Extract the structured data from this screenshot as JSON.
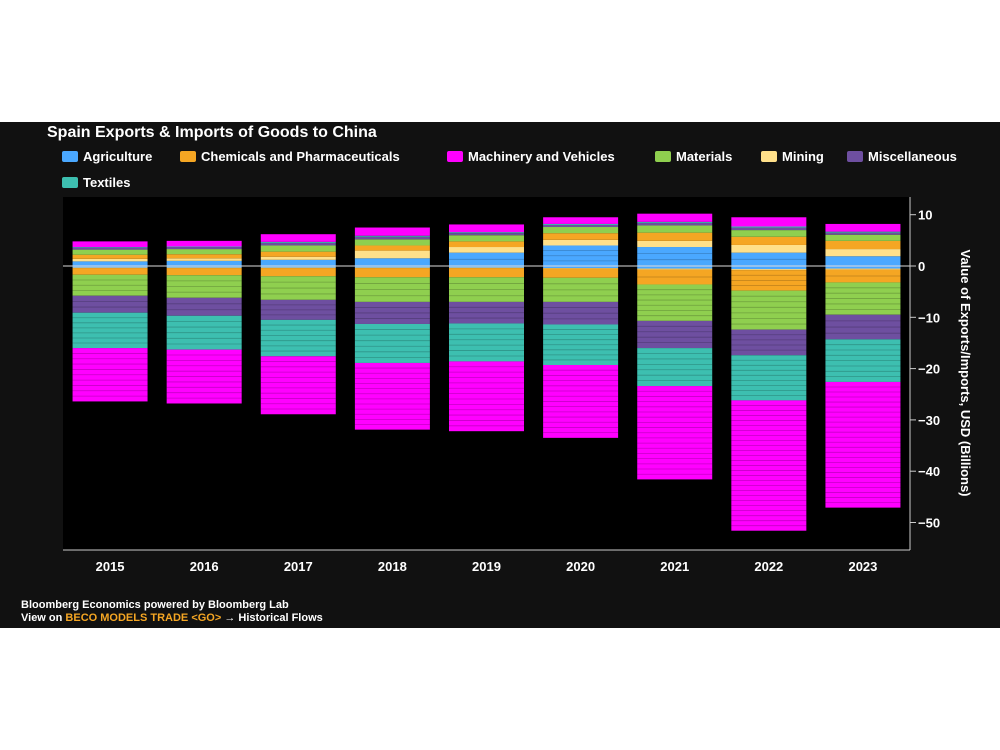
{
  "chart_data": {
    "type": "bar",
    "stacked": true,
    "title": "Spain Exports & Imports of Goods to China",
    "ylabel": "Value of Exports/Imports, USD (Billions)",
    "ylim": [
      -55,
      13
    ],
    "yticks": [
      "10",
      "0",
      "−10",
      "−20",
      "−30",
      "−40",
      "−50"
    ],
    "categories": [
      "2015",
      "2016",
      "2017",
      "2018",
      "2019",
      "2020",
      "2021",
      "2022",
      "2023"
    ],
    "series": [
      {
        "name": "Agriculture",
        "color": "#4aa8ff",
        "exports": [
          0.9,
          1.0,
          1.2,
          1.5,
          2.6,
          4.0,
          3.7,
          2.6,
          1.9
        ],
        "imports": [
          -0.3,
          -0.3,
          -0.3,
          -0.3,
          -0.3,
          -0.4,
          -0.5,
          -0.6,
          -0.5
        ]
      },
      {
        "name": "Chemicals and Pharmaceuticals",
        "color": "#f5a623",
        "exports": [
          0.8,
          0.8,
          1.0,
          1.0,
          1.1,
          1.3,
          1.6,
          1.6,
          1.6
        ],
        "imports": [
          -1.3,
          -1.4,
          -1.6,
          -1.8,
          -1.8,
          -1.8,
          -2.9,
          -4.0,
          -2.5
        ]
      },
      {
        "name": "Machinery and Vehicles",
        "color": "#ff00ff",
        "exports": [
          1.1,
          1.1,
          1.5,
          1.6,
          1.5,
          1.3,
          1.6,
          1.8,
          1.5
        ],
        "imports": [
          -10.4,
          -10.5,
          -11.3,
          -13.0,
          -13.6,
          -14.2,
          -18.2,
          -25.4,
          -24.5
        ]
      },
      {
        "name": "Materials",
        "color": "#8fcf4f",
        "exports": [
          1.0,
          1.0,
          1.2,
          1.2,
          1.2,
          1.2,
          1.4,
          1.3,
          1.2
        ],
        "imports": [
          -4.1,
          -4.4,
          -4.6,
          -4.8,
          -4.8,
          -4.7,
          -7.1,
          -7.6,
          -6.3
        ]
      },
      {
        "name": "Mining",
        "color": "#ffe08a",
        "exports": [
          0.5,
          0.5,
          0.6,
          1.5,
          1.1,
          1.1,
          1.2,
          1.5,
          1.4
        ],
        "imports": [
          -0.1,
          -0.1,
          -0.1,
          -0.1,
          -0.1,
          -0.1,
          -0.2,
          -0.2,
          -0.2
        ]
      },
      {
        "name": "Miscellaneous",
        "color": "#6e4fa0",
        "exports": [
          0.4,
          0.4,
          0.5,
          0.5,
          0.4,
          0.4,
          0.5,
          0.5,
          0.4
        ],
        "imports": [
          -3.3,
          -3.5,
          -3.9,
          -4.3,
          -4.2,
          -4.4,
          -5.3,
          -5.0,
          -4.8
        ]
      },
      {
        "name": "Textiles",
        "color": "#3dbfb0",
        "exports": [
          0.1,
          0.1,
          0.2,
          0.2,
          0.2,
          0.2,
          0.2,
          0.2,
          0.2
        ],
        "imports": [
          -6.9,
          -6.6,
          -7.1,
          -7.6,
          -7.4,
          -7.9,
          -7.4,
          -8.8,
          -8.3
        ]
      }
    ],
    "stack_order_up": [
      "Agriculture",
      "Mining",
      "Chemicals and Pharmaceuticals",
      "Materials",
      "Miscellaneous",
      "Textiles",
      "Machinery and Vehicles"
    ],
    "stack_order_down": [
      "Agriculture",
      "Mining",
      "Chemicals and Pharmaceuticals",
      "Materials",
      "Miscellaneous",
      "Textiles",
      "Machinery and Vehicles"
    ],
    "legend_position": "top",
    "background": "#111111",
    "plot_background": "#000000"
  },
  "footer": {
    "line1": "Bloomberg Economics powered by Bloomberg Lab",
    "line2_prefix": "View on ",
    "line2_command": "BECO MODELS TRADE <GO>",
    "line2_suffix": " → Historical Flows"
  }
}
